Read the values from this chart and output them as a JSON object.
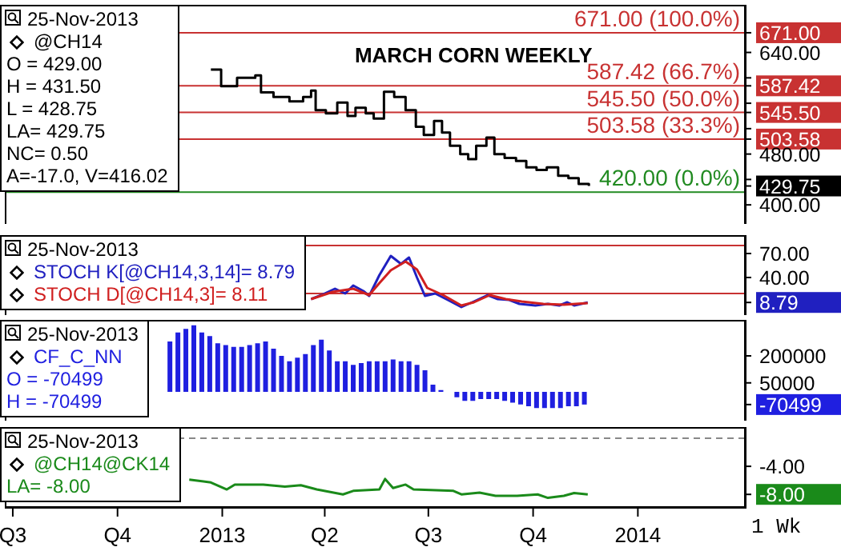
{
  "chart_data": [
    {
      "type": "step",
      "title": "MARCH CORN WEEKLY",
      "legend": "top left",
      "tick_labels": "y",
      "xlim": [
        "2012-06-24",
        "2014-04-05"
      ],
      "ylim": [
        370,
        715
      ],
      "yticks": [
        {
          "value": 671,
          "label": "671.00"
        },
        {
          "value": 640,
          "label": "640.00"
        },
        {
          "value": 600,
          "label": null
        },
        {
          "value": 587.42,
          "label": "587.42"
        },
        {
          "value": 560,
          "label": null
        },
        {
          "value": 545.5,
          "label": "545.50"
        },
        {
          "value": 520,
          "label": null
        },
        {
          "value": 503.58,
          "label": "503.58"
        },
        {
          "value": 480,
          "label": "480.00"
        },
        {
          "value": 440,
          "label": null
        },
        {
          "value": 429.75,
          "label": "429.75"
        },
        {
          "value": 400,
          "label": "400.00"
        }
      ],
      "annotations": [
        "25-Nov-2013",
        "O = 429.00",
        "H = 431.50",
        "L = 428.75",
        "LA= 429.75",
        "NC= 0.50",
        "A=-17.0, V=416.02"
      ],
      "ref_lines": [
        {
          "axis": "y",
          "value": 671,
          "label": "671.00 (100.0%)",
          "color": "#c83232"
        },
        {
          "axis": "y",
          "value": 587.42,
          "label": "587.42 (66.7%)",
          "color": "#c83232"
        },
        {
          "axis": "y",
          "value": 545.5,
          "label": "545.50 (50.0%)",
          "color": "#c83232"
        },
        {
          "axis": "y",
          "value": 503.58,
          "label": "503.58 (33.3%)",
          "color": "#c83232"
        },
        {
          "axis": "y",
          "value": 420,
          "label": "420.00 (0.0%)",
          "color": "#228b22"
        }
      ],
      "series": [
        {
          "name": "@CH14",
          "color": "#000000",
          "x": [
            "2012-12-22",
            "2012-12-31",
            "2013-01-14",
            "2013-01-30",
            "2013-02-04",
            "2013-02-15",
            "2013-03-01",
            "2013-03-13",
            "2013-03-20",
            "2013-03-24",
            "2013-04-02",
            "2013-04-12",
            "2013-04-21",
            "2013-04-28",
            "2013-05-07",
            "2013-05-14",
            "2013-05-23",
            "2013-06-01",
            "2013-06-11",
            "2013-06-20",
            "2013-06-27",
            "2013-07-06",
            "2013-07-13",
            "2013-07-20",
            "2013-07-29",
            "2013-08-05",
            "2013-08-12",
            "2013-08-21",
            "2013-08-28",
            "2013-09-06",
            "2013-09-16",
            "2013-09-25",
            "2013-10-04",
            "2013-10-13",
            "2013-10-23",
            "2013-11-01",
            "2013-11-10",
            "2013-11-19"
          ],
          "values": [
            613,
            587,
            600,
            604,
            577,
            570,
            563,
            570,
            580,
            549,
            544,
            561,
            540,
            553,
            544,
            536,
            578,
            570,
            549,
            523,
            510,
            532,
            514,
            493,
            480,
            472,
            493,
            506,
            480,
            474,
            469,
            459,
            455,
            459,
            446,
            442,
            433,
            429.75
          ]
        }
      ]
    },
    {
      "type": "line",
      "legend": "left",
      "tick_labels": "y",
      "xlim": [
        "2012-06-24",
        "2014-04-05"
      ],
      "ylim": [
        -7,
        93
      ],
      "yticks": [
        {
          "value": 70,
          "label": "70.00"
        },
        {
          "value": 40,
          "label": "40.00"
        },
        {
          "value": 8.79,
          "label": "8.79"
        }
      ],
      "annotations": [
        "25-Nov-2013"
      ],
      "ref_lines": [
        {
          "axis": "y",
          "value": 80,
          "color": "#c83232"
        },
        {
          "axis": "y",
          "value": 20,
          "color": "#c83232"
        }
      ],
      "series": [
        {
          "name": "STOCH K[@CH14,3,14]= 8.79",
          "color": "#2020c0",
          "x": [
            "2013-03-20",
            "2013-03-29",
            "2013-04-10",
            "2013-04-19",
            "2013-04-26",
            "2013-05-05",
            "2013-05-10",
            "2013-05-19",
            "2013-05-29",
            "2013-06-07",
            "2013-06-14",
            "2013-06-21",
            "2013-06-28",
            "2013-07-07",
            "2013-07-18",
            "2013-07-30",
            "2013-08-10",
            "2013-08-22",
            "2013-08-31",
            "2013-09-10",
            "2013-09-19",
            "2013-10-03",
            "2013-10-14",
            "2013-10-24",
            "2013-10-31",
            "2013-11-06",
            "2013-11-18"
          ],
          "values": [
            13,
            18,
            26,
            20,
            30,
            23,
            17,
            43,
            67,
            57,
            65,
            40,
            17,
            20,
            12,
            3,
            10,
            18,
            13,
            12,
            7,
            5,
            7,
            5,
            9,
            5,
            8.79
          ]
        },
        {
          "name": "STOCH D[@CH14,3]= 8.11",
          "color": "#d02020",
          "x": [
            "2013-03-20",
            "2013-04-08",
            "2013-04-26",
            "2013-05-10",
            "2013-05-19",
            "2013-05-29",
            "2013-06-11",
            "2013-06-21",
            "2013-06-30",
            "2013-07-14",
            "2013-07-30",
            "2013-08-10",
            "2013-08-24",
            "2013-09-07",
            "2013-09-21",
            "2013-10-10",
            "2013-10-28",
            "2013-11-18"
          ],
          "values": [
            13,
            22,
            26,
            18,
            33,
            49,
            60,
            50,
            27,
            18,
            5,
            9,
            18,
            13,
            10,
            7,
            6,
            8.11
          ]
        }
      ]
    },
    {
      "type": "bar",
      "legend": "top left",
      "tick_labels": "y",
      "xlim": [
        "2012-06-24",
        "2014-04-05"
      ],
      "ylim": [
        -160000,
        400000
      ],
      "yticks": [
        200000,
        50000,
        -70499
      ],
      "annotations": [
        "25-Nov-2013",
        "O = -70499",
        "H = -70499"
      ],
      "x": [
        "2012-11-16",
        "2012-11-23",
        "2012-11-30",
        "2012-12-07",
        "2012-12-14",
        "2012-12-21",
        "2012-12-28",
        "2013-01-04",
        "2013-01-11",
        "2013-01-18",
        "2013-01-25",
        "2013-02-01",
        "2013-02-08",
        "2013-02-15",
        "2013-02-22",
        "2013-03-01",
        "2013-03-08",
        "2013-03-15",
        "2013-03-22",
        "2013-03-29",
        "2013-04-05",
        "2013-04-12",
        "2013-04-19",
        "2013-04-26",
        "2013-05-03",
        "2013-05-10",
        "2013-05-17",
        "2013-05-24",
        "2013-05-31",
        "2013-06-07",
        "2013-06-14",
        "2013-06-21",
        "2013-06-28",
        "2013-07-05",
        "2013-07-12",
        "2013-07-19",
        "2013-07-26",
        "2013-08-02",
        "2013-08-09",
        "2013-08-16",
        "2013-08-23",
        "2013-08-30",
        "2013-09-06",
        "2013-09-13",
        "2013-09-20",
        "2013-09-27",
        "2013-10-04",
        "2013-10-11",
        "2013-10-18",
        "2013-10-25",
        "2013-11-01",
        "2013-11-08",
        "2013-11-15"
      ],
      "series": [
        {
          "name": "CF_C_NN",
          "color": "#1f1fe0",
          "values": [
            280000,
            330000,
            350000,
            370000,
            330000,
            310000,
            270000,
            260000,
            250000,
            250000,
            260000,
            270000,
            280000,
            240000,
            200000,
            170000,
            190000,
            210000,
            260000,
            290000,
            230000,
            170000,
            170000,
            150000,
            160000,
            170000,
            170000,
            170000,
            180000,
            170000,
            170000,
            150000,
            120000,
            40000,
            10000,
            null,
            -30000,
            -50000,
            -50000,
            -40000,
            -40000,
            -40000,
            -50000,
            -60000,
            -70000,
            -80000,
            -90000,
            -90000,
            -90000,
            -90000,
            -80000,
            -80000,
            -70499
          ]
        }
      ]
    },
    {
      "type": "line",
      "legend": "top left",
      "xlabel": "1 Wk",
      "xlim": [
        "2012-06-24",
        "2014-04-05"
      ],
      "ylim": [
        -9.8,
        1.6
      ],
      "xticks": [
        {
          "value": "2012-07-01",
          "label": "Q3"
        },
        {
          "value": "2012-10-01",
          "label": "Q4"
        },
        {
          "value": "2013-01-01",
          "label": "2013"
        },
        {
          "value": "2013-04-01",
          "label": "Q2"
        },
        {
          "value": "2013-07-01",
          "label": "Q3"
        },
        {
          "value": "2013-10-01",
          "label": "Q4"
        },
        {
          "value": "2014-01-01",
          "label": "2014"
        }
      ],
      "yticks": [
        {
          "value": -4,
          "label": "-4.00"
        },
        {
          "value": -8,
          "label": "-8.00"
        }
      ],
      "annotations": [
        "25-Nov-2013",
        "LA= -8.00"
      ],
      "ref_lines": [
        {
          "axis": "y",
          "value": 0,
          "color": "#888888",
          "line_style": "dashed"
        }
      ],
      "series": [
        {
          "name": "@CH14@CK14",
          "color": "#1a8a1a",
          "x": [
            "2012-12-03",
            "2012-12-22",
            "2013-01-05",
            "2013-01-12",
            "2013-02-06",
            "2013-02-25",
            "2013-03-11",
            "2013-03-25",
            "2013-04-17",
            "2013-04-26",
            "2013-05-19",
            "2013-05-24",
            "2013-05-31",
            "2013-06-11",
            "2013-06-18",
            "2013-07-23",
            "2013-07-30",
            "2013-08-15",
            "2013-08-29",
            "2013-09-17",
            "2013-10-05",
            "2013-10-14",
            "2013-10-28",
            "2013-11-06",
            "2013-11-18"
          ],
          "values": [
            -5.9,
            -6.3,
            -7.3,
            -6.6,
            -6.6,
            -6.9,
            -6.7,
            -7.3,
            -8,
            -7.5,
            -7.3,
            -5.8,
            -7.1,
            -6.6,
            -7.3,
            -7.5,
            -8,
            -7.75,
            -8.2,
            -8.2,
            -8,
            -8.5,
            -8.2,
            -7.8,
            -8
          ]
        }
      ]
    }
  ]
}
